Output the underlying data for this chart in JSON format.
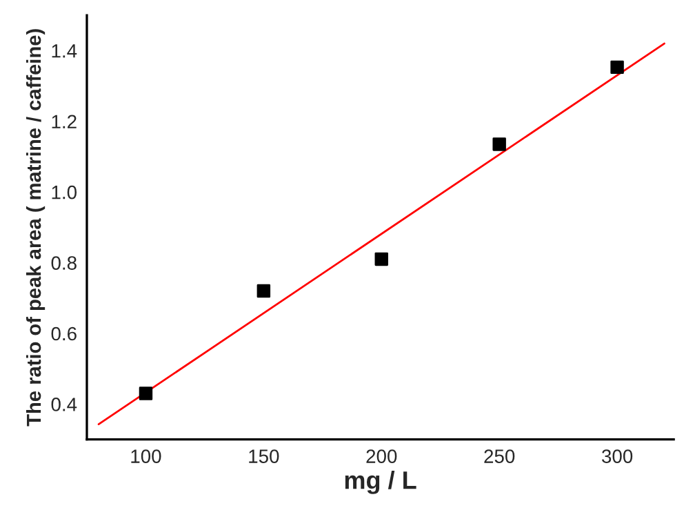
{
  "chart_data": {
    "type": "scatter",
    "xlabel": "mg / L",
    "ylabel": "The ratio of peak area ( matrine / caffeine)",
    "xlim": [
      75,
      324
    ],
    "ylim": [
      0.3,
      1.5
    ],
    "xticks": [
      100,
      150,
      200,
      250,
      300
    ],
    "yticks": [
      {
        "value": 0.4,
        "label": "0.4"
      },
      {
        "value": 0.6,
        "label": "0.6"
      },
      {
        "value": 0.8,
        "label": "0.8"
      },
      {
        "value": 1.0,
        "label": "1.0"
      },
      {
        "value": 1.2,
        "label": "1.2"
      },
      {
        "value": 1.4,
        "label": "1.4"
      }
    ],
    "grid": false,
    "legend": false,
    "marker": "square",
    "series": [
      {
        "color": "#000000",
        "x": [
          100,
          150,
          200,
          250,
          300
        ],
        "values": [
          0.43,
          0.72,
          0.81,
          1.135,
          1.353
        ]
      },
      {
        "type": "line",
        "color": "#ff0000",
        "x": [
          80,
          320
        ],
        "values": [
          0.343,
          1.42
        ],
        "marker": "none",
        "line_style": "solid"
      }
    ]
  }
}
